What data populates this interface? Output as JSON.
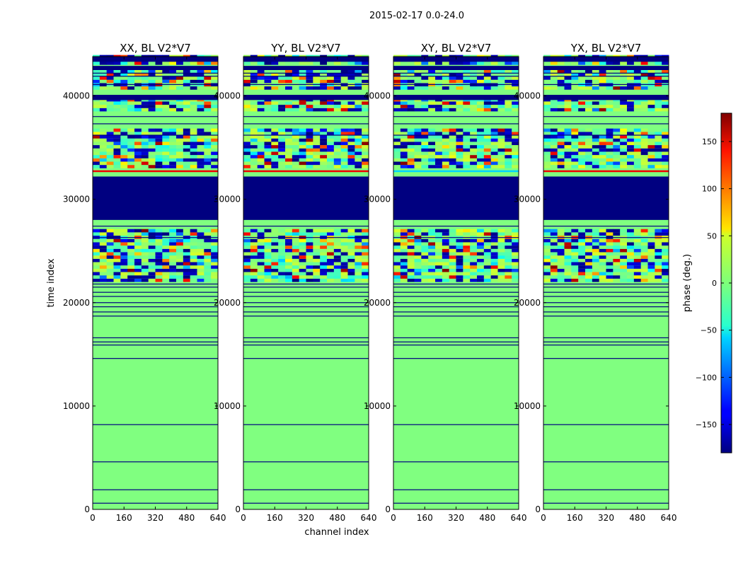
{
  "figure_title": "2015-02-17 0.0-24.0",
  "colorbar": {
    "label": "phase (deg.)",
    "colormap": "jet",
    "ticks": [
      150,
      100,
      50,
      0,
      -50,
      -100,
      -150
    ],
    "tick_labels": [
      "150",
      "100",
      "50",
      "0",
      "−50",
      "−100",
      "−150"
    ],
    "range": [
      -180,
      180
    ]
  },
  "chart_data": [
    {
      "type": "heatmap",
      "title": "XX, BL V2*V7",
      "xlabel": "",
      "ylabel": "time index",
      "x_ticks": [
        "0",
        "160",
        "320",
        "480",
        "640"
      ],
      "y_ticks": [
        "0",
        "10000",
        "20000",
        "30000",
        "40000"
      ],
      "xlim": [
        0,
        640
      ],
      "ylim": [
        0,
        43800
      ]
    },
    {
      "type": "heatmap",
      "title": "YY, BL V2*V7",
      "xlabel": "channel index",
      "ylabel": "",
      "x_ticks": [
        "0",
        "160",
        "320",
        "480",
        "640"
      ],
      "y_ticks": [
        "0",
        "10000",
        "20000",
        "30000",
        "40000"
      ],
      "xlim": [
        0,
        640
      ],
      "ylim": [
        0,
        43800
      ]
    },
    {
      "type": "heatmap",
      "title": "XY, BL V2*V7",
      "xlabel": "",
      "ylabel": "",
      "x_ticks": [
        "0",
        "160",
        "320",
        "480",
        "640"
      ],
      "y_ticks": [
        "0",
        "10000",
        "20000",
        "30000",
        "40000"
      ],
      "xlim": [
        0,
        640
      ],
      "ylim": [
        0,
        43800
      ]
    },
    {
      "type": "heatmap",
      "title": "YX, BL V2*V7",
      "xlabel": "",
      "ylabel": "",
      "x_ticks": [
        "0",
        "160",
        "320",
        "480",
        "640"
      ],
      "y_ticks": [
        "0",
        "10000",
        "20000",
        "30000",
        "40000"
      ],
      "xlim": [
        0,
        640
      ],
      "ylim": [
        0,
        43800
      ]
    }
  ],
  "bands": {
    "background_phase": 0,
    "dark_blue_phase": -180,
    "solid_blocks": [
      [
        28000,
        32200
      ],
      [
        39600,
        40100
      ],
      [
        42500,
        42900
      ],
      [
        43300,
        43800
      ]
    ],
    "thin_lines": [
      600,
      1900,
      4600,
      8200,
      14600,
      15900,
      16200,
      16600,
      18700,
      19100,
      19600,
      20000,
      20600,
      21000,
      21500,
      21800,
      26300,
      27400,
      36200,
      37300,
      38000,
      41100,
      41900,
      42200
    ],
    "noisy_rows": [
      [
        22000,
        27000
      ],
      [
        33000,
        36800
      ],
      [
        38500,
        39600
      ],
      [
        40600,
        42400
      ],
      [
        43000,
        43800
      ]
    ]
  }
}
